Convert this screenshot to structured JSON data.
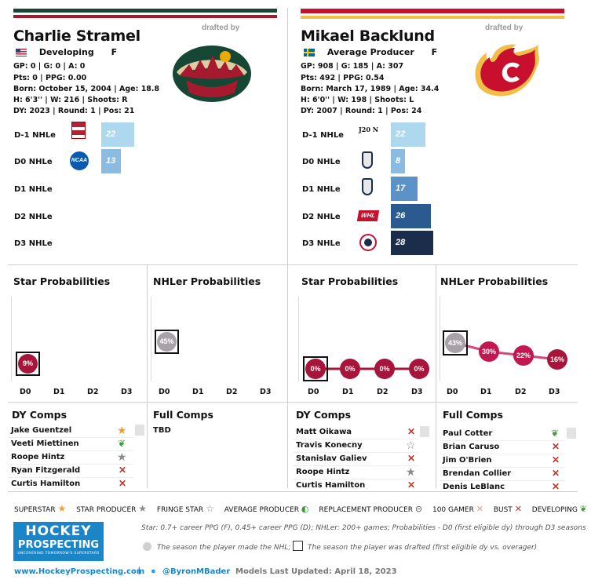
{
  "left": {
    "name": "Charlie Stramel",
    "status": "Developing",
    "position": "F",
    "line1": "GP: 0 | G: 0 | A: 0",
    "line2": "Pts: 0 | PPG: 0.00",
    "line3": "Born: October 15, 2004 | Age: 18.8",
    "line4": "H: 6'3'' | W: 216 | Shoots: R",
    "line5": "DY: 2023 | Round: 1 | Pos: 21",
    "drafted_by": "drafted by",
    "team_colors": {
      "primary": "#154734",
      "secondary": "#a6192e",
      "tertiary": "#ddcba4"
    },
    "rows": [
      {
        "label": "D-1 NHLe",
        "value": "22",
        "logo": "usntdp-logo",
        "color": "#aed8ee"
      },
      {
        "label": "D0 NHLe",
        "value": "13",
        "logo": "ncaa-logo",
        "color": "#8bbbe0"
      },
      {
        "label": "D1 NHLe",
        "value": "",
        "logo": "",
        "color": ""
      },
      {
        "label": "D2 NHLe",
        "value": "",
        "logo": "",
        "color": ""
      },
      {
        "label": "D3 NHLe",
        "value": "",
        "logo": "",
        "color": ""
      }
    ],
    "star_title": "Star Probabilities",
    "nhler_title": "NHLer Probabilities",
    "star_points": [
      {
        "x": "D0",
        "v": "9%"
      }
    ],
    "nhler_points": [
      {
        "x": "D0",
        "v": "45%"
      }
    ],
    "axis": [
      "D0",
      "D1",
      "D2",
      "D3"
    ],
    "dy_title": "DY Comps",
    "dy_comps": [
      {
        "name": "Jake Guentzel",
        "icon": "star-icon",
        "mark": "★"
      },
      {
        "name": "Veeti Miettinen",
        "icon": "leaf-icon",
        "mark": "❦"
      },
      {
        "name": "Roope Hintz",
        "icon": "star-icon",
        "mark": "★"
      },
      {
        "name": "Ryan Fitzgerald",
        "icon": "x-icon",
        "mark": "✕"
      },
      {
        "name": "Curtis Hamilton",
        "icon": "x-icon",
        "mark": "✕"
      }
    ],
    "full_title": "Full Comps",
    "full_comps": [
      {
        "name": "TBD"
      }
    ]
  },
  "right": {
    "name": "Mikael Backlund",
    "status": "Average Producer",
    "position": "F",
    "line1": "GP: 908 | G: 185 | A: 307",
    "line2": "Pts: 492 | PPG: 0.54",
    "line3": "Born: March 17, 1989 | Age: 34.4",
    "line4": "H: 6'0'' | W: 198 | Shoots: L",
    "line5": "DY: 2007 | Round: 1 | Pos: 24",
    "drafted_by": "drafted by",
    "team_colors": {
      "primary": "#c8102e",
      "secondary": "#f1be48"
    },
    "rows": [
      {
        "label": "D-1 NHLe",
        "value": "22",
        "logo": "j20-logo",
        "logo_text": "J20 N",
        "color": "#aed8ee"
      },
      {
        "label": "D0 NHLe",
        "value": "8",
        "logo": "league-logo",
        "color": "#8bbbe0"
      },
      {
        "label": "D1 NHLe",
        "value": "17",
        "logo": "league-logo",
        "color": "#5b93c8"
      },
      {
        "label": "D2 NHLe",
        "value": "26",
        "logo": "whl-logo",
        "color": "#2b5a90"
      },
      {
        "label": "D3 NHLe",
        "value": "28",
        "logo": "ahl-logo",
        "color": "#1c2d4c"
      }
    ],
    "star_title": "Star Probabilities",
    "nhler_title": "NHLer Probabilities",
    "star_points": [
      {
        "x": "D0",
        "v": "0%"
      },
      {
        "x": "D1",
        "v": "0%"
      },
      {
        "x": "D2",
        "v": "0%"
      },
      {
        "x": "D3",
        "v": "0%"
      }
    ],
    "nhler_points": [
      {
        "x": "D0",
        "v": "43%"
      },
      {
        "x": "D1",
        "v": "30%"
      },
      {
        "x": "D2",
        "v": "22%"
      },
      {
        "x": "D3",
        "v": "16%"
      }
    ],
    "axis": [
      "D0",
      "D1",
      "D2",
      "D3"
    ],
    "dy_title": "DY Comps",
    "dy_comps": [
      {
        "name": "Matt Oikawa",
        "icon": "x-icon",
        "mark": "✕"
      },
      {
        "name": "Travis Konecny",
        "icon": "fringe-star-icon",
        "mark": "☆"
      },
      {
        "name": "Stanislav Galiev",
        "icon": "x-icon",
        "mark": "✕"
      },
      {
        "name": "Roope Hintz",
        "icon": "star-icon",
        "mark": "★"
      },
      {
        "name": "Curtis Hamilton",
        "icon": "x-icon",
        "mark": "✕"
      }
    ],
    "full_title": "Full Comps",
    "full_comps": [
      {
        "name": "Paul Cotter",
        "icon": "leaf-icon",
        "mark": "❦"
      },
      {
        "name": "Brian Caruso",
        "icon": "x-icon",
        "mark": "✕"
      },
      {
        "name": "Jim O'Brien",
        "icon": "x-icon",
        "mark": "✕"
      },
      {
        "name": "Brendan Collier",
        "icon": "x-icon",
        "mark": "✕"
      },
      {
        "name": "Denis LeBlanc",
        "icon": "x-icon",
        "mark": "✕"
      }
    ]
  },
  "legend": [
    {
      "label": "SUPERSTAR",
      "mark": "★",
      "color": "#f0a030"
    },
    {
      "label": "STAR PRODUCER",
      "mark": "★",
      "color": "#8a8a8a"
    },
    {
      "label": "FRINGE STAR",
      "mark": "☆",
      "color": "#8a8a8a"
    },
    {
      "label": "AVERAGE PRODUCER",
      "mark": "◐",
      "color": "#3a9a3a"
    },
    {
      "label": "REPLACEMENT PRODUCER",
      "mark": "⊝",
      "color": "#555"
    },
    {
      "label": "100 GAMER",
      "mark": "✕",
      "color": "#e0a080"
    },
    {
      "label": "BUST",
      "mark": "✕",
      "color": "#c0392b"
    },
    {
      "label": "DEVELOPING",
      "mark": "❦",
      "color": "#3a9a3a"
    }
  ],
  "footer": {
    "logo_line1": "HOCKEY",
    "logo_line2": "PROSPECTING",
    "logo_tag": "UNCOVERING TOMORROW'S SUPERSTARS",
    "note1": "Star: 0.7+ career PPG (F), 0.45+ career PPG (D); NHLer: 200+ games; Probabilities - D0 (first eligible dy) through D3 seasons",
    "note2": "The season the player made the NHL;",
    "note3": "The season the player was drafted (first eligible dy vs. overager)",
    "website": "www.HockeyProspecting.com",
    "separator": "|",
    "twitter": "@ByronMBader",
    "updated": "Models Last Updated: April 18, 2023"
  }
}
